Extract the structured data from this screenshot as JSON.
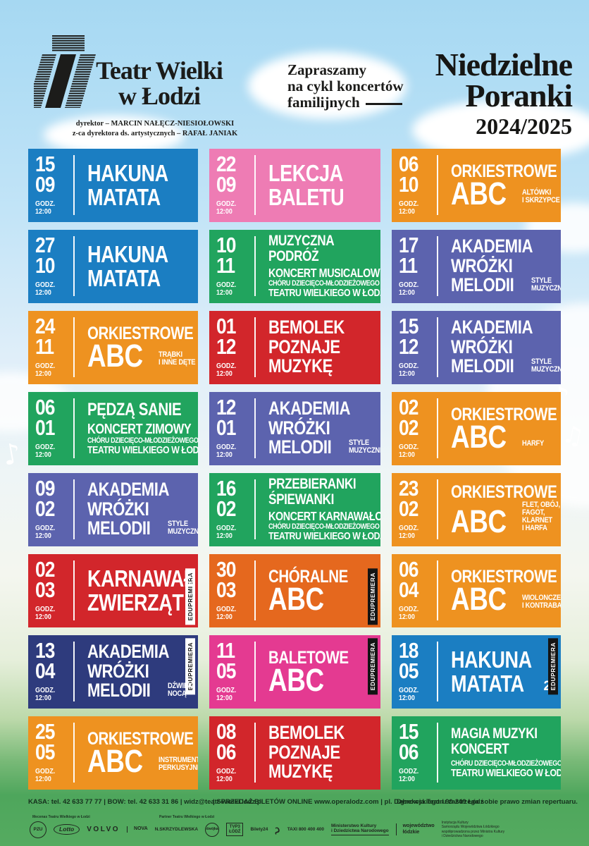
{
  "header": {
    "theatre_name_line1": "Teatr Wielki",
    "theatre_name_line2": "w Łodzi",
    "director_line": "dyrektor – MARCIN NAŁĘCZ-NIESIOŁOWSKI",
    "deputy_line": "z-ca dyrektora ds. artystycznych – RAFAŁ JANIAK",
    "invite_line1": "Zapraszamy",
    "invite_line2": "na cykl koncertów",
    "invite_line3": "familijnych",
    "season_title_line1": "Niedzielne",
    "season_title_line2": "Poranki",
    "season_years": "2024/2025"
  },
  "icons": {
    "music_note": "♪",
    "music_note_beamed": "♫"
  },
  "palette": {
    "blue": "#1b7ec2",
    "pink": "#ee7cb4",
    "orange": "#ee9220",
    "green": "#21a45e",
    "purple": "#5c63ae",
    "red": "#d2262b",
    "navy": "#2e3b7d",
    "magenta": "#e43a91",
    "orangered": "#e5681e"
  },
  "schedule": {
    "time_label": "GODZ.",
    "time_value": "12:00",
    "badge_text": "EDUPREMIERA",
    "tiles": [
      {
        "day": "15",
        "month": "09",
        "color": "blue",
        "rows": [
          {
            "t": "HAKUNA",
            "s": "34"
          },
          {
            "t": "MATATA",
            "s": "34"
          }
        ]
      },
      {
        "day": "22",
        "month": "09",
        "color": "pink",
        "rows": [
          {
            "t": "LEKCJA",
            "s": "34"
          },
          {
            "t": "BALETU",
            "s": "34"
          }
        ]
      },
      {
        "day": "06",
        "month": "10",
        "color": "orange",
        "rows": [
          {
            "t": "ORKIESTROWE",
            "s": "26"
          },
          {
            "t": "ABC",
            "s": "46",
            "side": [
              "ALTÓWKI",
              "I SKRZYPCE"
            ]
          }
        ]
      },
      {
        "day": "27",
        "month": "10",
        "color": "blue",
        "rows": [
          {
            "t": "HAKUNA",
            "s": "34"
          },
          {
            "t": "MATATA",
            "s": "34"
          }
        ]
      },
      {
        "day": "10",
        "month": "11",
        "color": "green",
        "rows": [
          {
            "t": "MUZYCZNA",
            "s": "22"
          },
          {
            "t": "PODRÓŻ",
            "s": "22"
          },
          {
            "t": "KONCERT MUSICALOWY",
            "s": "18",
            "g": 1
          },
          {
            "t": "CHÓRU DZIECIĘCO-MŁODZIEŻOWEGO",
            "s": "11"
          },
          {
            "t": "TEATRU WIELKIEGO W ŁODZI",
            "s": "16"
          }
        ]
      },
      {
        "day": "17",
        "month": "11",
        "color": "purple",
        "rows": [
          {
            "t": "AKADEMIA",
            "s": "28"
          },
          {
            "t": "WRÓŻKI",
            "s": "28"
          },
          {
            "t": "MELODII",
            "s": "28",
            "side": [
              "STYLE",
              "MUZYCZNE"
            ]
          }
        ]
      },
      {
        "day": "24",
        "month": "11",
        "color": "orange",
        "rows": [
          {
            "t": "ORKIESTROWE",
            "s": "26"
          },
          {
            "t": "ABC",
            "s": "46",
            "side": [
              "TRĄBKI",
              "I INNE DĘTE"
            ]
          }
        ]
      },
      {
        "day": "01",
        "month": "12",
        "color": "red",
        "rows": [
          {
            "t": "BEMOLEK",
            "s": "28"
          },
          {
            "t": "POZNAJE",
            "s": "28"
          },
          {
            "t": "MUZYKĘ",
            "s": "28"
          }
        ]
      },
      {
        "day": "15",
        "month": "12",
        "color": "purple",
        "rows": [
          {
            "t": "AKADEMIA",
            "s": "28"
          },
          {
            "t": "WRÓŻKI",
            "s": "28"
          },
          {
            "t": "MELODII",
            "s": "28",
            "side": [
              "STYLE",
              "MUZYCZNE"
            ]
          }
        ]
      },
      {
        "day": "06",
        "month": "01",
        "color": "green",
        "rows": [
          {
            "t": "PĘDZĄ SANIE",
            "s": "26"
          },
          {
            "t": "KONCERT ZIMOWY",
            "s": "20",
            "g": 1
          },
          {
            "t": "CHÓRU DZIECIĘCO-MŁODZIEŻOWEGO",
            "s": "11"
          },
          {
            "t": "TEATRU WIELKIEGO W ŁODZI",
            "s": "16"
          }
        ]
      },
      {
        "day": "12",
        "month": "01",
        "color": "purple",
        "rows": [
          {
            "t": "AKADEMIA",
            "s": "28"
          },
          {
            "t": "WRÓŻKI",
            "s": "28"
          },
          {
            "t": "MELODII",
            "s": "28",
            "side": [
              "STYLE",
              "MUZYCZNE"
            ]
          }
        ]
      },
      {
        "day": "02",
        "month": "02",
        "color": "orange",
        "rows": [
          {
            "t": "ORKIESTROWE",
            "s": "26"
          },
          {
            "t": "ABC",
            "s": "46",
            "side": [
              "HARFY"
            ]
          }
        ]
      },
      {
        "day": "09",
        "month": "02",
        "color": "purple",
        "rows": [
          {
            "t": "AKADEMIA",
            "s": "28"
          },
          {
            "t": "WRÓŻKI",
            "s": "28"
          },
          {
            "t": "MELODII",
            "s": "28",
            "side": [
              "STYLE",
              "MUZYCZNE"
            ]
          }
        ]
      },
      {
        "day": "16",
        "month": "02",
        "color": "green",
        "rows": [
          {
            "t": "PRZEBIERANKI",
            "s": "22"
          },
          {
            "t": "ŚPIEWANKI",
            "s": "22"
          },
          {
            "t": "KONCERT KARNAWAŁOWY",
            "s": "18",
            "g": 1
          },
          {
            "t": "CHÓRU DZIECIĘCO-MŁODZIEŻOWEGO",
            "s": "11"
          },
          {
            "t": "TEATRU WIELKIEGO W ŁODZI",
            "s": "16"
          }
        ]
      },
      {
        "day": "23",
        "month": "02",
        "color": "orange",
        "rows": [
          {
            "t": "ORKIESTROWE",
            "s": "26"
          },
          {
            "t": "ABC",
            "s": "46",
            "side": [
              "FLET, OBÓJ,",
              "FAGOT,",
              "KLARNET",
              "I HARFA"
            ]
          }
        ]
      },
      {
        "day": "02",
        "month": "03",
        "color": "red",
        "badge": {
          "theme": "light",
          "pos": "bottom"
        },
        "rows": [
          {
            "t": "KARNAWAŁ",
            "s": "34"
          },
          {
            "t": "ZWIERZĄT",
            "s": "34"
          }
        ]
      },
      {
        "day": "30",
        "month": "03",
        "color": "orangered",
        "badge": {
          "theme": "dark",
          "pos": "bottom"
        },
        "rows": [
          {
            "t": "CHÓRALNE",
            "s": "26"
          },
          {
            "t": "ABC",
            "s": "46"
          }
        ]
      },
      {
        "day": "06",
        "month": "04",
        "color": "orange",
        "rows": [
          {
            "t": "ORKIESTROWE",
            "s": "26"
          },
          {
            "t": "ABC",
            "s": "46",
            "side": [
              "WIOLONCZELE",
              "I KONTRABASY"
            ]
          }
        ]
      },
      {
        "day": "13",
        "month": "04",
        "color": "navy",
        "badge": {
          "theme": "light",
          "pos": "top"
        },
        "rows": [
          {
            "t": "AKADEMIA",
            "s": "28"
          },
          {
            "t": "WRÓŻKI",
            "s": "28"
          },
          {
            "t": "MELODII",
            "s": "28",
            "side": [
              "DŹWIĘKI",
              "NOCĄ"
            ]
          }
        ]
      },
      {
        "day": "11",
        "month": "05",
        "color": "magenta",
        "badge": {
          "theme": "dark",
          "pos": "top"
        },
        "rows": [
          {
            "t": "BALETOWE",
            "s": "26"
          },
          {
            "t": "ABC",
            "s": "46"
          }
        ]
      },
      {
        "day": "18",
        "month": "05",
        "color": "blue",
        "badge": {
          "theme": "dark",
          "pos": "top"
        },
        "rows": [
          {
            "t": "HAKUNA",
            "s": "34"
          },
          {
            "t": "MATATA",
            "s": "34",
            "tail": "2"
          }
        ]
      },
      {
        "day": "25",
        "month": "05",
        "color": "orange",
        "rows": [
          {
            "t": "ORKIESTROWE",
            "s": "26"
          },
          {
            "t": "ABC",
            "s": "46",
            "side": [
              "INSTRUMENTY",
              "PERKUSYJNE"
            ]
          }
        ]
      },
      {
        "day": "08",
        "month": "06",
        "color": "red",
        "rows": [
          {
            "t": "BEMOLEK",
            "s": "28"
          },
          {
            "t": "POZNAJE",
            "s": "28"
          },
          {
            "t": "MUZYKĘ",
            "s": "28"
          }
        ]
      },
      {
        "day": "15",
        "month": "06",
        "color": "green",
        "rows": [
          {
            "t": "MAGIA MUZYKI",
            "s": "22"
          },
          {
            "t": "KONCERT",
            "s": "22"
          },
          {
            "t": "CHÓRU DZIECIĘCO-MŁODZIEŻOWEGO",
            "s": "11",
            "g": 1
          },
          {
            "t": "TEATRU WIELKIEGO W ŁODZI",
            "s": "16"
          }
        ]
      }
    ]
  },
  "footer": {
    "contact": "KASA: tel. 42 633 77 77 | BOW: tel. 42 633 31 86 | widz@teatr-wielki.lodz.pl",
    "sales": "| SPRZEDAŻ BILETÓW ONLINE www.operalodz.com | pl. Dąbrowskiego / 90-249 Łódź",
    "note": "Dyrekcja Teatru zastrzega sobie prawo zmian repertuaru.",
    "mecenas_label": "Mecenas Teatru Wielkiego w Łodzi",
    "partner_label": "Partner Teatru Wielkiego w Łodzi",
    "logos": [
      {
        "name": "pzu-logo",
        "text": "PZU",
        "shape": "circle"
      },
      {
        "name": "lotto-logo",
        "text": "Lotto",
        "shape": "oval"
      },
      {
        "name": "volvo-logo",
        "text": "VOLVO",
        "shape": "wordmark"
      },
      {
        "name": "nova-logo",
        "text": "NOVA",
        "shape": "sep"
      },
      {
        "name": "skrzydlewska-logo",
        "text": "N.SKRZYDLEWSKA",
        "shape": "wordmark-small"
      },
      {
        "name": "dwojka-logo",
        "text": "dwójka",
        "shape": "circle-small"
      },
      {
        "name": "tvp3-lodz-logo",
        "text": "TVP3\nŁÓDŹ",
        "shape": "box"
      },
      {
        "name": "bilety24-logo",
        "text": "Bilety24",
        "shape": "wordmark-small"
      },
      {
        "name": "swan-icon",
        "text": "ς",
        "shape": "glyph"
      },
      {
        "name": "taxi-logo",
        "text": "TAXI 800 400 400",
        "shape": "wordmark-small"
      },
      {
        "name": "mkidn-logo",
        "text": "Ministerstwo Kultury\ni Dziedzictwa Narodowego",
        "shape": "underline"
      },
      {
        "name": "lodzkie-logo",
        "text": "województwo\nłódzkie",
        "shape": "sep"
      },
      {
        "name": "institution-note",
        "text": "Instytucja Kultury\nSamorządu Województwa Łódzkiego\nwspółprowadzona przez Ministra Kultury\ni Dziedzictwa Narodowego",
        "shape": "tiny"
      }
    ]
  }
}
